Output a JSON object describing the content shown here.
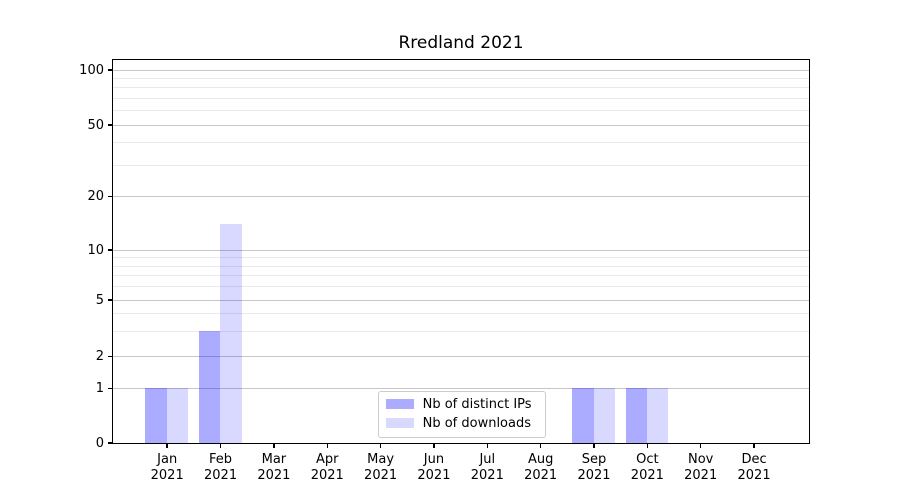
{
  "chart_data": {
    "type": "bar",
    "title": "Rredland 2021",
    "xlabel": "",
    "ylabel": "",
    "x_tick_months": [
      "Jan",
      "Feb",
      "Mar",
      "Apr",
      "May",
      "Jun",
      "Jul",
      "Aug",
      "Sep",
      "Oct",
      "Nov",
      "Dec"
    ],
    "x_tick_year": "2021",
    "series": [
      {
        "name": "Nb of distinct IPs",
        "color": "rgba(0,0,255,0.33)",
        "color_hex_on_white": "#aaaaff",
        "values": [
          1,
          3,
          0,
          0,
          0,
          0,
          0,
          0,
          1,
          1,
          0,
          0
        ]
      },
      {
        "name": "Nb of downloads",
        "color": "rgba(0,0,255,0.15)",
        "color_hex_on_white": "#d9d9ff",
        "values": [
          1,
          14,
          0,
          0,
          0,
          0,
          0,
          0,
          1,
          1,
          0,
          0
        ]
      }
    ],
    "y_ticks": [
      0,
      1,
      2,
      5,
      10,
      20,
      50,
      100
    ],
    "y_minor_gridlines": [
      3,
      4,
      6,
      7,
      8,
      9,
      30,
      40,
      60,
      70,
      80,
      90
    ],
    "ylim": [
      0,
      114
    ],
    "y_scale": "symlog",
    "grid": "horizontal major + minor",
    "legend_position": "inside lower-center",
    "grid_major_color": "#c6c6c6",
    "grid_minor_color": "#eaeaea"
  }
}
